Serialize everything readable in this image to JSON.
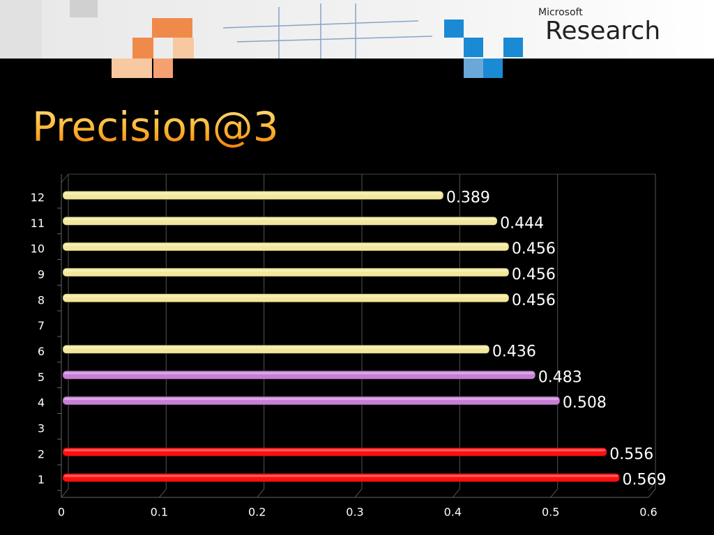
{
  "header": {
    "brand_small": "Microsoft",
    "brand_large": "Research"
  },
  "chart_data": {
    "type": "bar",
    "orientation": "horizontal",
    "title": "Precision@3",
    "categories": [
      "1",
      "2",
      "3",
      "4",
      "5",
      "6",
      "7",
      "8",
      "9",
      "10",
      "11",
      "12"
    ],
    "values": [
      0.569,
      0.556,
      null,
      0.508,
      0.483,
      0.436,
      null,
      0.456,
      0.456,
      0.456,
      0.444,
      0.389
    ],
    "colors": [
      "#ff1010",
      "#ff1010",
      null,
      "#c77fd6",
      "#c77fd6",
      "#f2e79a",
      null,
      "#f2e79a",
      "#f2e79a",
      "#f2e79a",
      "#f2e79a",
      "#f2e79a"
    ],
    "xlim": [
      0,
      0.6
    ],
    "xticks": [
      0,
      0.1,
      0.2,
      0.3,
      0.4,
      0.5,
      0.6
    ],
    "grid": true
  }
}
